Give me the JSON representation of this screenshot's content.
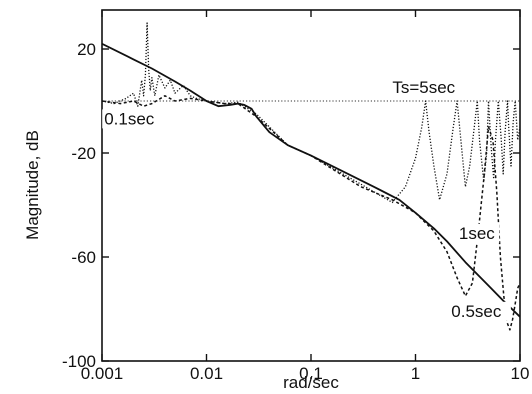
{
  "chart_data": {
    "type": "line",
    "title": "",
    "xlabel": "rad/sec",
    "ylabel": "Magnitude, dB",
    "xscale": "log",
    "xlim": [
      0.001,
      10
    ],
    "ylim": [
      -100,
      35
    ],
    "x_ticks": [
      {
        "value": 0.001,
        "label": "0.001"
      },
      {
        "value": 0.01,
        "label": "0.01"
      },
      {
        "value": 0.1,
        "label": "0.1"
      },
      {
        "value": 1,
        "label": "1"
      },
      {
        "value": 10,
        "label": "10"
      }
    ],
    "y_ticks": [
      {
        "value": 20,
        "label": "20"
      },
      {
        "value": -20,
        "label": "-20"
      },
      {
        "value": -60,
        "label": "-60"
      },
      {
        "value": -100,
        "label": "-100"
      }
    ],
    "grid": false,
    "legend": "none",
    "annotations": [
      {
        "text": "Ts=5sec",
        "x": 0.6,
        "y": 3
      },
      {
        "text": "0.1sec",
        "x": 0.00105,
        "y": -9
      },
      {
        "text": "1sec",
        "x": 2.6,
        "y": -53
      },
      {
        "text": "0.5sec",
        "x": 2.2,
        "y": -83
      }
    ],
    "series": [
      {
        "style": "solid",
        "x": [
          0.001,
          0.002,
          0.003,
          0.005,
          0.007,
          0.01,
          0.013,
          0.017,
          0.02,
          0.023,
          0.027,
          0.03,
          0.04,
          0.06,
          0.1,
          0.2,
          0.4,
          0.7,
          1,
          1.5,
          2,
          3,
          5,
          7,
          10
        ],
        "y": [
          22,
          16,
          12.5,
          7.5,
          4,
          0,
          -2,
          -1.5,
          -1,
          -1.5,
          -3,
          -6,
          -12,
          -17,
          -21,
          -27,
          -33,
          -38,
          -43,
          -49,
          -54,
          -62,
          -71,
          -77,
          -83
        ]
      },
      {
        "style": "dotted",
        "x": [
          0.001,
          0.0013,
          0.0017,
          0.002,
          0.0022,
          0.0024,
          0.0025,
          0.0026,
          0.0027,
          0.0028,
          0.0029,
          0.003,
          0.0032,
          0.0035,
          0.004,
          0.0045,
          0.005,
          0.006,
          0.007,
          0.008,
          0.01,
          0.015,
          0.02,
          0.03,
          0.06,
          0.1,
          0.3,
          0.6,
          0.8,
          1.0,
          1.15,
          1.25,
          1.35,
          1.5,
          1.7,
          2.0,
          2.3,
          2.5,
          2.7,
          3.0,
          3.3,
          3.7,
          3.9,
          4.1,
          4.5,
          4.8,
          5.0,
          5.3,
          5.6,
          5.8,
          6.2,
          6.6,
          6.9,
          7.2,
          7.6,
          7.8,
          8.2,
          8.6,
          9.0,
          9.5,
          10
        ],
        "y": [
          0,
          -1,
          1,
          3,
          -2,
          8,
          2,
          10,
          30,
          12,
          4,
          9,
          2,
          10,
          5,
          8,
          3,
          6,
          2,
          1,
          0,
          -1,
          -0.5,
          -5,
          -17,
          -21,
          -32,
          -39,
          -33,
          -22,
          -10,
          0,
          -12,
          -25,
          -38,
          -28,
          -10,
          0,
          -14,
          -33,
          -25,
          -8,
          0,
          -15,
          -31,
          -20,
          0,
          -18,
          -30,
          -16,
          0,
          -14,
          -28,
          -12,
          0,
          -10,
          -25,
          -8,
          0,
          -15,
          -10
        ]
      },
      {
        "style": "dashed",
        "x": [
          0.001,
          0.0015,
          0.002,
          0.0025,
          0.003,
          0.004,
          0.005,
          0.007,
          0.01,
          0.015,
          0.02,
          0.03,
          0.06,
          0.1,
          0.3,
          0.6,
          1,
          1.5,
          2,
          2.5,
          3,
          3.5,
          4,
          4.5,
          5,
          5.5,
          6,
          6.5,
          7,
          7.5,
          8,
          8.5,
          9,
          9.5,
          10
        ],
        "y": [
          0,
          -1,
          0,
          -2,
          -1,
          2,
          0,
          1,
          0,
          -1,
          -1,
          -6,
          -17,
          -21,
          -33,
          -38,
          -43,
          -50,
          -58,
          -68,
          -75,
          -70,
          -50,
          -30,
          -10,
          -15,
          -35,
          -60,
          -75,
          -85,
          -88,
          -84,
          -78,
          -72,
          -70
        ]
      }
    ],
    "reference_lines": [
      {
        "style": "dotted",
        "y": 0
      }
    ]
  }
}
